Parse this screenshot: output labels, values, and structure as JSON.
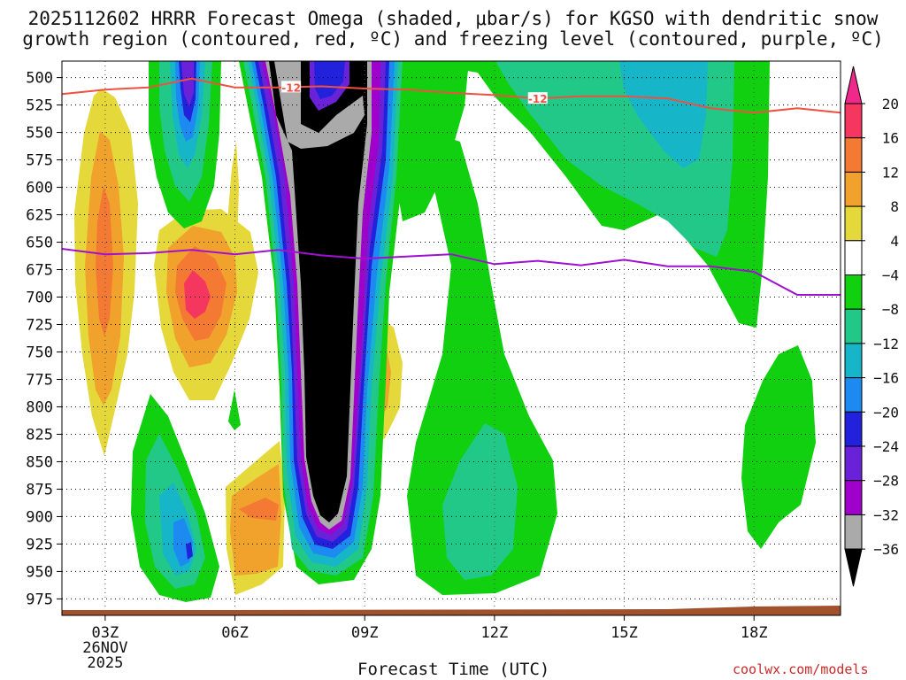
{
  "title": {
    "line1": "2025112602 HRRR Forecast Omega (shaded, μbar/s) for KGSO with dendritic snow",
    "line2": "growth region (contoured, red, ºC) and freezing level (contoured, purple, ºC)"
  },
  "footer": {
    "xlabel": "Forecast Time (UTC)",
    "site": "coolwx.com/models"
  },
  "chart_data": {
    "type": "heatmap",
    "variable": "Omega",
    "units": "μbar/s",
    "xlabel": "Forecast Time (UTC)",
    "x_ticks": [
      "03Z",
      "06Z",
      "09Z",
      "12Z",
      "15Z",
      "18Z"
    ],
    "x_tick_hours": [
      3,
      6,
      9,
      12,
      15,
      18
    ],
    "x_date_label": [
      "26NOV",
      "2025"
    ],
    "xlim_hours": [
      2,
      20
    ],
    "y_ticks": [
      500,
      525,
      550,
      575,
      600,
      625,
      650,
      675,
      700,
      725,
      750,
      775,
      800,
      825,
      850,
      875,
      900,
      925,
      950,
      975
    ],
    "ylim": [
      485,
      990
    ],
    "y_scale": "pressure, inverted",
    "grid": "dotted",
    "colorbar": {
      "labels": [
        "20",
        "16",
        "12",
        "8",
        "4",
        "−4",
        "−8",
        "−12",
        "−16",
        "−20",
        "−24",
        "−28",
        "−32",
        "−36"
      ],
      "bins": [
        {
          "range": "16 to 20",
          "color": "#f5365e"
        },
        {
          "range": "12 to 16",
          "color": "#f47a33"
        },
        {
          "range": "8 to 12",
          "color": "#f0a22d"
        },
        {
          "range": "4 to 8",
          "color": "#e4d83a"
        },
        {
          "range": "-4 to 4",
          "color": "#ffffff"
        },
        {
          "range": "-8 to -4",
          "color": "#10d010"
        },
        {
          "range": "-12 to -8",
          "color": "#22c888"
        },
        {
          "range": "-16 to -12",
          "color": "#16b6c8"
        },
        {
          "range": "-20 to -16",
          "color": "#1c8af0"
        },
        {
          "range": "-24 to -20",
          "color": "#2222dd"
        },
        {
          "range": "-28 to -24",
          "color": "#6a22d8"
        },
        {
          "range": "-32 to -28",
          "color": "#a000cc"
        },
        {
          "range": "-36 to -32",
          "color": "#aaaaaa"
        },
        {
          "range": "< -36",
          "color": "#000000"
        }
      ],
      "top_extend_color": "#f0288c",
      "bottom_extend_color": "#000000"
    },
    "colors": {
      "dgz_contour": "#f05040",
      "freezing_contour": "#a010d0",
      "terrain": "#a0522d"
    },
    "dgz_contour_label": "-12",
    "dgz_contour": {
      "hours": [
        2.0,
        3.0,
        4.0,
        5.0,
        6.0,
        7.0,
        8.0,
        9.0,
        10.0,
        11.0,
        12.0,
        13.0,
        14.0,
        15.0,
        16.0,
        17.0,
        18.0,
        19.0,
        20.0
      ],
      "pressure": [
        515,
        511,
        509,
        501,
        509,
        509,
        508,
        510,
        511,
        514,
        516,
        519,
        517,
        517,
        519,
        528,
        532,
        528,
        532
      ]
    },
    "freezing_contour": {
      "hours": [
        2.0,
        3.0,
        4.0,
        5.0,
        6.0,
        7.0,
        8.0,
        9.0,
        10.0,
        11.0,
        12.0,
        13.0,
        14.0,
        15.0,
        16.0,
        17.0,
        18.0,
        19.0,
        20.0
      ],
      "pressure": [
        656,
        661,
        660,
        657,
        661,
        657,
        662,
        665,
        663,
        661,
        670,
        667,
        671,
        666,
        672,
        672,
        677,
        698,
        698
      ]
    }
  }
}
